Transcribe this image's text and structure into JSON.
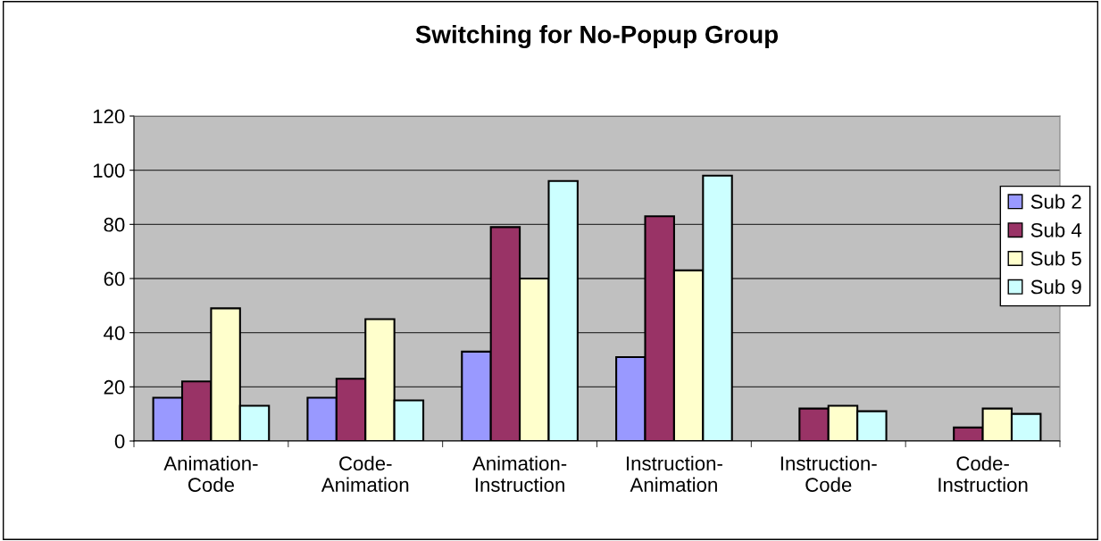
{
  "chart_data": {
    "type": "bar",
    "title": "Switching for No-Popup Group",
    "categories": [
      "Animation-\nCode",
      "Code-\nAnimation",
      "Animation-\nInstruction",
      "Instruction-\nAnimation",
      "Instruction-\nCode",
      "Code-\nInstruction"
    ],
    "series": [
      {
        "name": "Sub 2",
        "color": "#9999ff",
        "values": [
          16,
          16,
          33,
          31,
          null,
          null
        ]
      },
      {
        "name": "Sub 4",
        "color": "#993366",
        "values": [
          22,
          23,
          79,
          83,
          12,
          5
        ]
      },
      {
        "name": "Sub 5",
        "color": "#ffffcc",
        "values": [
          49,
          45,
          60,
          63,
          13,
          12
        ]
      },
      {
        "name": "Sub 9",
        "color": "#ccffff",
        "values": [
          13,
          15,
          96,
          98,
          11,
          10
        ]
      }
    ],
    "ylim": [
      0,
      120
    ],
    "yticks": [
      0,
      20,
      40,
      60,
      80,
      100,
      120
    ],
    "grid": "y",
    "legend": "right"
  }
}
